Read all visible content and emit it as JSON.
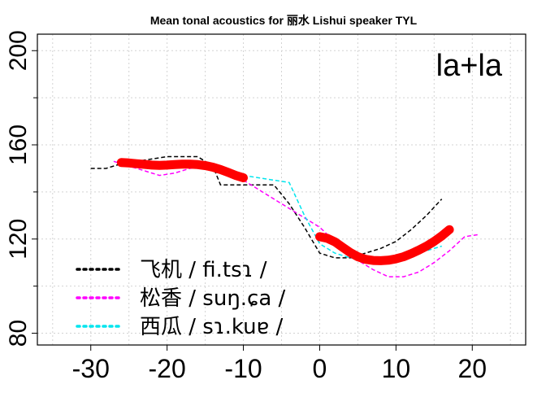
{
  "chart_data": {
    "type": "line",
    "title": "Mean tonal acoustics for 丽水 Lishui speaker TYL",
    "annotation": "la+la",
    "xlabel": "",
    "ylabel": "",
    "xlim": [
      -37,
      27
    ],
    "ylim": [
      75,
      207
    ],
    "x_ticks": [
      -30,
      -20,
      -10,
      0,
      10,
      20
    ],
    "y_ticks": [
      80,
      120,
      160,
      200
    ],
    "grid": true,
    "legend_position": "bottom-left",
    "series": [
      {
        "name": "飞机 / fi.tsɿ /",
        "color": "#000000",
        "style": "dashed",
        "x": [
          -30,
          -28,
          -26,
          -24,
          -22,
          -20,
          -18,
          -16,
          -14,
          -13,
          -10,
          -8,
          -6,
          -4,
          -2,
          0,
          2,
          4,
          6,
          8,
          10,
          12,
          14,
          16
        ],
        "y": [
          150,
          150,
          152,
          153,
          154,
          155,
          155,
          155,
          151,
          143,
          143,
          143,
          143,
          135,
          125,
          114,
          112,
          112,
          114,
          116,
          119,
          124,
          130,
          137
        ]
      },
      {
        "name": "松香 / suŋ.ɕa /",
        "color": "#ff00ff",
        "style": "dashed",
        "x": [
          -27,
          -25,
          -23,
          -21,
          -19,
          -17,
          -15,
          -13,
          -11,
          -10,
          0,
          1,
          3,
          5,
          7,
          9,
          11,
          13,
          15,
          17,
          19,
          21
        ],
        "y": [
          153,
          151,
          149,
          147,
          148,
          150,
          151,
          150,
          148,
          145,
          125,
          122,
          116,
          111,
          107,
          104,
          104,
          106,
          110,
          115,
          121,
          122
        ]
      },
      {
        "name": "西瓜 / sɿ.kuɐ /",
        "color": "#00e5ee",
        "style": "dashed",
        "x": [
          -26,
          -24,
          -22,
          -20,
          -18,
          -16,
          -14,
          -12,
          -10,
          -8,
          -6,
          -4,
          -2,
          0,
          2,
          4,
          6,
          8,
          10,
          12,
          14,
          16
        ],
        "y": [
          152,
          152,
          152,
          152,
          152,
          152,
          151,
          149,
          147,
          146,
          145,
          144,
          130,
          118,
          114,
          112,
          111,
          111,
          112,
          113,
          115,
          117
        ]
      },
      {
        "name": "",
        "color": "#ff0000",
        "style": "thick",
        "segments": [
          {
            "x": [
              -26,
              -25,
              -24,
              -23,
              -22,
              -21,
              -20,
              -19,
              -18,
              -17,
              -16,
              -15,
              -14,
              -13,
              -12,
              -11,
              -10
            ],
            "y": [
              152.5,
              152.3,
              152,
              151.7,
              151.4,
              151.3,
              151.4,
              151.6,
              151.8,
              151.8,
              151.6,
              151.2,
              150.5,
              149.5,
              148.3,
              147,
              146
            ]
          },
          {
            "x": [
              0,
              1,
              2,
              3,
              4,
              5,
              6,
              7,
              8,
              9,
              10,
              11,
              12,
              13,
              14,
              15,
              16,
              17
            ],
            "y": [
              121,
              120.3,
              118.8,
              116.5,
              114.3,
              112.5,
              111.4,
              110.9,
              110.8,
              111,
              111.6,
              112.5,
              113.8,
              115.3,
              117,
              119,
              121.3,
              124
            ]
          }
        ]
      }
    ]
  }
}
